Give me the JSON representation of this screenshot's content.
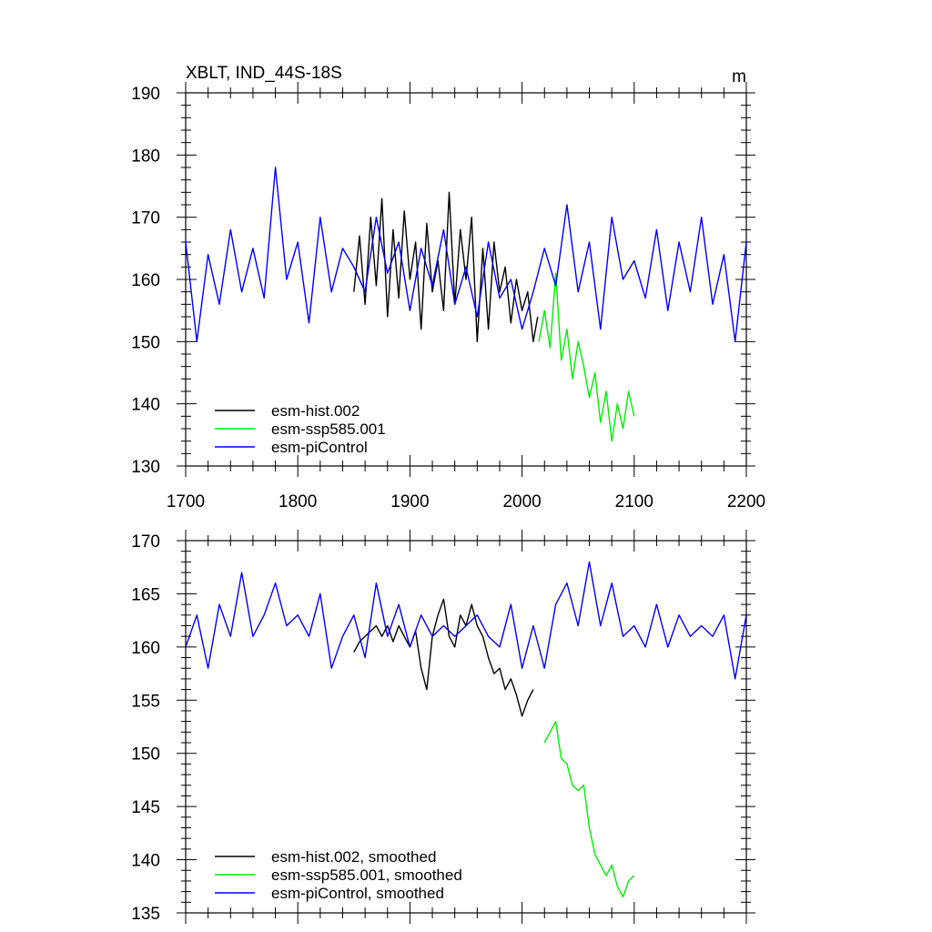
{
  "chart_data": [
    {
      "type": "line",
      "title": "XBLT, IND_44S-18S",
      "units_label": "m",
      "xlim": [
        1700,
        2200
      ],
      "ylim": [
        130,
        190
      ],
      "x_ticks": [
        1700,
        1800,
        1900,
        2000,
        2100,
        2200
      ],
      "x_tick_labels": [
        "1700",
        "1800",
        "1900",
        "2000",
        "2100",
        "2200"
      ],
      "y_ticks": [
        130,
        140,
        150,
        160,
        170,
        180,
        190
      ],
      "y_tick_labels": [
        "130",
        "140",
        "150",
        "160",
        "170",
        "180",
        "190"
      ],
      "legend_position": "bottom-left",
      "series": [
        {
          "name": "esm-hist.002",
          "color": "#000000",
          "x": [
            1850,
            1855,
            1860,
            1865,
            1870,
            1875,
            1880,
            1885,
            1890,
            1895,
            1900,
            1905,
            1910,
            1915,
            1920,
            1925,
            1930,
            1935,
            1940,
            1945,
            1950,
            1955,
            1960,
            1965,
            1970,
            1975,
            1980,
            1985,
            1990,
            1995,
            2000,
            2005,
            2010,
            2014
          ],
          "y": [
            158,
            167,
            156,
            170,
            159,
            173,
            154,
            168,
            157,
            171,
            160,
            166,
            152,
            169,
            158,
            163,
            155,
            174,
            156,
            168,
            160,
            170,
            150,
            165,
            152,
            166,
            158,
            162,
            153,
            160,
            155,
            158,
            150,
            154
          ]
        },
        {
          "name": "esm-ssp585.001",
          "color": "#00ee00",
          "x": [
            2015,
            2020,
            2025,
            2030,
            2035,
            2040,
            2045,
            2050,
            2055,
            2060,
            2065,
            2070,
            2075,
            2080,
            2085,
            2090,
            2095,
            2100
          ],
          "y": [
            150,
            155,
            149,
            161,
            147,
            152,
            144,
            150,
            146,
            141,
            145,
            137,
            142,
            134,
            140,
            136,
            142,
            138
          ]
        },
        {
          "name": "esm-piControl",
          "color": "#0000ee",
          "x": [
            1700,
            1710,
            1720,
            1730,
            1740,
            1750,
            1760,
            1770,
            1780,
            1790,
            1800,
            1810,
            1820,
            1830,
            1840,
            1850,
            1860,
            1870,
            1880,
            1890,
            1900,
            1910,
            1920,
            1930,
            1940,
            1950,
            1960,
            1970,
            1980,
            1990,
            2000,
            2010,
            2020,
            2030,
            2040,
            2050,
            2060,
            2070,
            2080,
            2090,
            2100,
            2110,
            2120,
            2130,
            2140,
            2150,
            2160,
            2170,
            2180,
            2190,
            2200
          ],
          "y": [
            166,
            150,
            164,
            156,
            168,
            158,
            165,
            157,
            178,
            160,
            166,
            153,
            170,
            158,
            165,
            162,
            158,
            170,
            161,
            166,
            155,
            165,
            159,
            168,
            156,
            162,
            154,
            166,
            157,
            160,
            152,
            158,
            165,
            159,
            172,
            158,
            166,
            152,
            170,
            160,
            163,
            157,
            168,
            155,
            166,
            158,
            170,
            156,
            164,
            150,
            166
          ]
        }
      ]
    },
    {
      "type": "line",
      "xlim": [
        1700,
        2200
      ],
      "ylim": [
        135,
        170
      ],
      "x_ticks": [
        1700,
        1800,
        1900,
        2000,
        2100,
        2200
      ],
      "y_ticks": [
        135,
        140,
        145,
        150,
        155,
        160,
        165,
        170
      ],
      "y_tick_labels": [
        "135",
        "140",
        "145",
        "150",
        "155",
        "160",
        "165",
        "170"
      ],
      "legend_position": "bottom-left",
      "series": [
        {
          "name": "esm-hist.002, smoothed",
          "color": "#000000",
          "x": [
            1850,
            1855,
            1860,
            1865,
            1870,
            1875,
            1880,
            1885,
            1890,
            1895,
            1900,
            1905,
            1910,
            1915,
            1920,
            1925,
            1930,
            1935,
            1940,
            1945,
            1950,
            1955,
            1960,
            1965,
            1970,
            1975,
            1980,
            1985,
            1990,
            1995,
            2000,
            2005,
            2010
          ],
          "y": [
            159.5,
            160.5,
            161,
            161.5,
            162,
            161,
            162,
            160.5,
            162,
            161,
            160,
            161.5,
            158,
            156,
            161,
            163,
            164.5,
            161,
            160,
            163,
            162,
            164,
            162,
            161,
            159,
            157.5,
            158,
            156,
            157,
            155.5,
            153.5,
            155,
            156
          ]
        },
        {
          "name": "esm-ssp585.001, smoothed",
          "color": "#00ee00",
          "x": [
            2020,
            2025,
            2030,
            2035,
            2040,
            2045,
            2050,
            2055,
            2060,
            2065,
            2070,
            2075,
            2080,
            2085,
            2090,
            2095,
            2100
          ],
          "y": [
            151,
            152,
            153,
            149.5,
            149,
            147,
            146.5,
            147,
            143,
            140.5,
            139.5,
            138.5,
            139.5,
            137.5,
            136.5,
            138,
            138.5
          ]
        },
        {
          "name": "esm-piControl, smoothed",
          "color": "#0000ee",
          "x": [
            1700,
            1710,
            1720,
            1730,
            1740,
            1750,
            1760,
            1770,
            1780,
            1790,
            1800,
            1810,
            1820,
            1830,
            1840,
            1850,
            1860,
            1870,
            1880,
            1890,
            1900,
            1910,
            1920,
            1930,
            1940,
            1950,
            1960,
            1970,
            1980,
            1990,
            2000,
            2010,
            2020,
            2030,
            2040,
            2050,
            2060,
            2070,
            2080,
            2090,
            2100,
            2110,
            2120,
            2130,
            2140,
            2150,
            2160,
            2170,
            2180,
            2190,
            2200
          ],
          "y": [
            160,
            163,
            158,
            164,
            161,
            167,
            161,
            163,
            166,
            162,
            163,
            161,
            165,
            158,
            161,
            163,
            159,
            166,
            161,
            164,
            160,
            163,
            161,
            162,
            161,
            162,
            163,
            161,
            160,
            164,
            158,
            162,
            158,
            164,
            166,
            162,
            168,
            162,
            166,
            161,
            162,
            160,
            164,
            160,
            163,
            161,
            162,
            161,
            163,
            157,
            163
          ]
        }
      ]
    }
  ]
}
